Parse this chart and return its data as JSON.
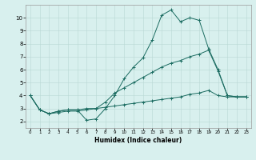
{
  "title": "",
  "xlabel": "Humidex (Indice chaleur)",
  "xlim": [
    -0.5,
    23.5
  ],
  "ylim": [
    1.5,
    11.0
  ],
  "xticks": [
    0,
    1,
    2,
    3,
    4,
    5,
    6,
    7,
    8,
    9,
    10,
    11,
    12,
    13,
    14,
    15,
    16,
    17,
    18,
    19,
    20,
    21,
    22,
    23
  ],
  "yticks": [
    2,
    3,
    4,
    5,
    6,
    7,
    8,
    9,
    10
  ],
  "bg_color": "#d8f0ee",
  "grid_color": "#b8d8d4",
  "line_color": "#1a6b60",
  "line1_y": [
    4.0,
    2.9,
    2.6,
    2.8,
    2.9,
    2.9,
    2.1,
    2.2,
    3.0,
    4.0,
    5.3,
    6.2,
    6.9,
    8.3,
    10.2,
    10.6,
    9.7,
    10.0,
    9.8,
    7.6,
    6.0,
    4.0,
    3.9,
    3.9
  ],
  "line2_y": [
    4.0,
    2.9,
    2.6,
    2.8,
    2.9,
    2.9,
    3.0,
    3.0,
    3.5,
    4.2,
    4.6,
    5.0,
    5.4,
    5.8,
    6.2,
    6.5,
    6.7,
    7.0,
    7.2,
    7.5,
    5.9,
    4.0,
    3.9,
    3.9
  ],
  "line3_y": [
    4.0,
    2.9,
    2.6,
    2.7,
    2.8,
    2.8,
    2.9,
    3.0,
    3.1,
    3.2,
    3.3,
    3.4,
    3.5,
    3.6,
    3.7,
    3.8,
    3.9,
    4.1,
    4.2,
    4.4,
    4.0,
    3.9,
    3.9,
    3.9
  ]
}
